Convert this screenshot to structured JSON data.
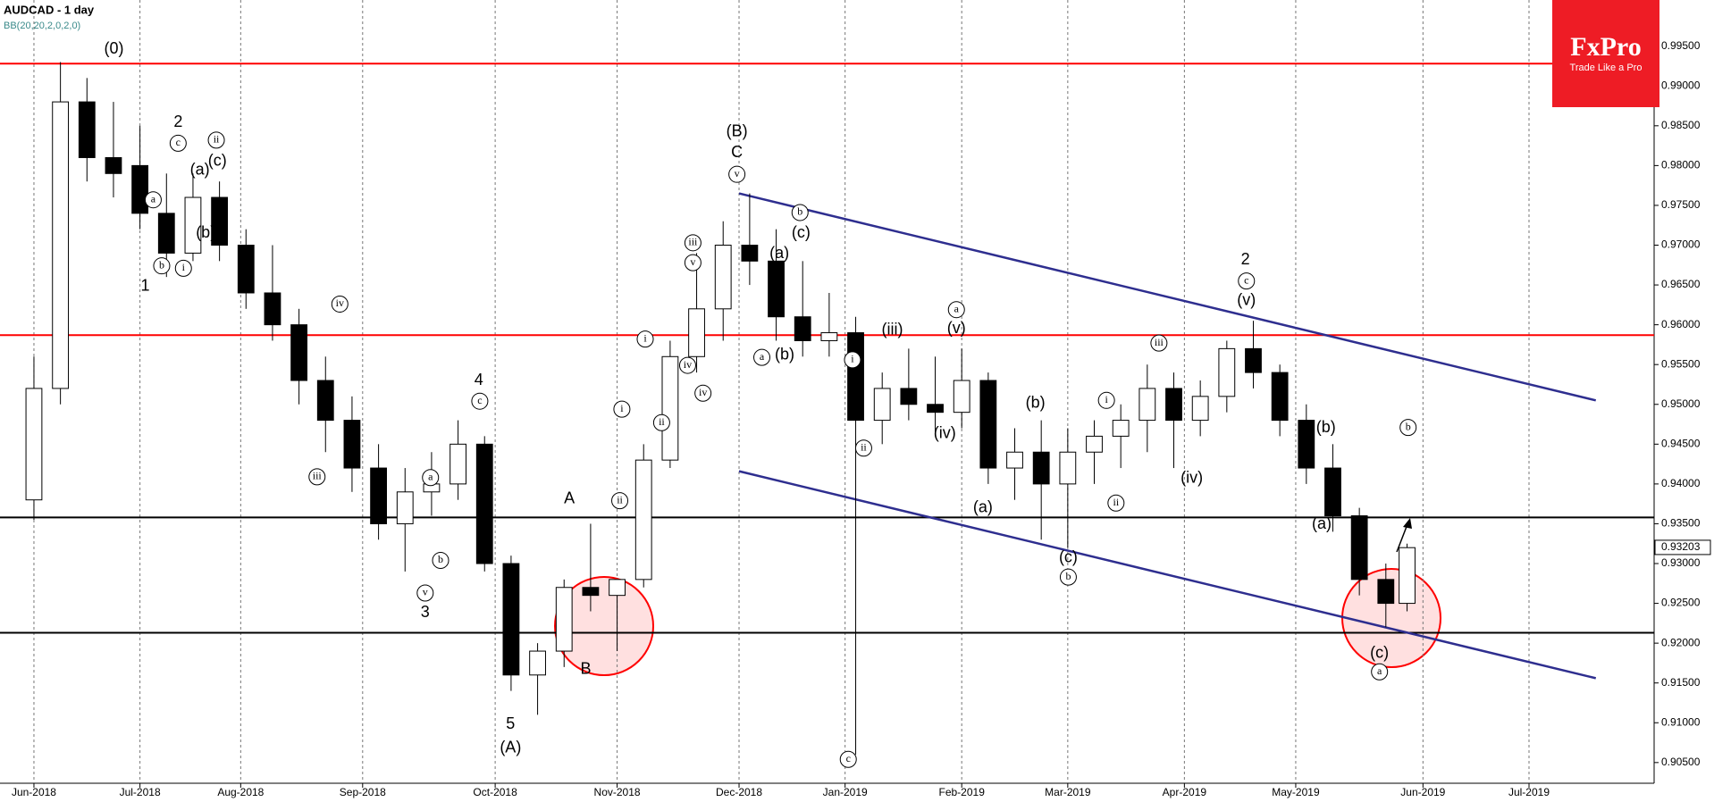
{
  "chart_data": {
    "type": "candlestick",
    "title": "AUDCAD - 1 day",
    "subtitle": "BB(20,20,2,0,2,0)",
    "brand": {
      "name": "FxPro",
      "tagline": "Trade Like a Pro"
    },
    "x": [
      0,
      5,
      10,
      15,
      20,
      25,
      30,
      35,
      40,
      45,
      50,
      55,
      60,
      65,
      70,
      75,
      80,
      85,
      90,
      95,
      100,
      105,
      110,
      115,
      120,
      125,
      130,
      135,
      140,
      145,
      150,
      155,
      160,
      165,
      170,
      175,
      180,
      185,
      190,
      195,
      200,
      205,
      210,
      215,
      220,
      225,
      230,
      235,
      240,
      245,
      250,
      255,
      259
    ],
    "open": [
      0.938,
      0.952,
      0.988,
      0.981,
      0.98,
      0.974,
      0.969,
      0.976,
      0.97,
      0.964,
      0.96,
      0.953,
      0.948,
      0.942,
      0.935,
      0.939,
      0.94,
      0.945,
      0.93,
      0.916,
      0.919,
      0.927,
      0.926,
      0.928,
      0.943,
      0.956,
      0.962,
      0.97,
      0.968,
      0.961,
      0.958,
      0.959,
      0.948,
      0.952,
      0.95,
      0.949,
      0.953,
      0.942,
      0.944,
      0.94,
      0.944,
      0.946,
      0.948,
      0.952,
      0.948,
      0.951,
      0.957,
      0.954,
      0.948,
      0.942,
      0.936,
      0.928,
      0.925
    ],
    "high": [
      0.956,
      0.993,
      0.991,
      0.988,
      0.985,
      0.979,
      0.979,
      0.978,
      0.972,
      0.97,
      0.962,
      0.956,
      0.951,
      0.945,
      0.942,
      0.944,
      0.948,
      0.946,
      0.931,
      0.92,
      0.928,
      0.935,
      0.928,
      0.945,
      0.958,
      0.969,
      0.973,
      0.9765,
      0.972,
      0.968,
      0.964,
      0.961,
      0.954,
      0.957,
      0.956,
      0.957,
      0.954,
      0.947,
      0.948,
      0.947,
      0.948,
      0.95,
      0.955,
      0.954,
      0.953,
      0.958,
      0.9605,
      0.955,
      0.95,
      0.945,
      0.937,
      0.93,
      0.9325
    ],
    "low": [
      0.9355,
      0.95,
      0.978,
      0.976,
      0.972,
      0.966,
      0.968,
      0.968,
      0.962,
      0.958,
      0.95,
      0.944,
      0.939,
      0.933,
      0.929,
      0.936,
      0.938,
      0.929,
      0.914,
      0.911,
      0.917,
      0.924,
      0.919,
      0.927,
      0.942,
      0.954,
      0.958,
      0.965,
      0.958,
      0.956,
      0.956,
      0.906,
      0.945,
      0.948,
      0.946,
      0.947,
      0.94,
      0.938,
      0.933,
      0.932,
      0.94,
      0.942,
      0.944,
      0.942,
      0.946,
      0.949,
      0.952,
      0.946,
      0.94,
      0.934,
      0.926,
      0.922,
      0.924
    ],
    "close": [
      0.952,
      0.988,
      0.981,
      0.979,
      0.974,
      0.969,
      0.976,
      0.97,
      0.964,
      0.96,
      0.953,
      0.948,
      0.942,
      0.935,
      0.939,
      0.94,
      0.945,
      0.93,
      0.916,
      0.919,
      0.927,
      0.926,
      0.928,
      0.943,
      0.956,
      0.962,
      0.97,
      0.968,
      0.961,
      0.958,
      0.959,
      0.948,
      0.952,
      0.95,
      0.949,
      0.953,
      0.942,
      0.944,
      0.94,
      0.944,
      0.946,
      0.948,
      0.952,
      0.948,
      0.951,
      0.957,
      0.954,
      0.948,
      0.942,
      0.936,
      0.928,
      0.925,
      0.932
    ],
    "xlim": [
      -6.4,
      305.6
    ],
    "xticks": [
      {
        "value": 0,
        "label": "Jun-2018"
      },
      {
        "value": 20,
        "label": "Jul-2018"
      },
      {
        "value": 39,
        "label": "Aug-2018"
      },
      {
        "value": 62,
        "label": "Sep-2018"
      },
      {
        "value": 87,
        "label": "Oct-2018"
      },
      {
        "value": 110,
        "label": "Nov-2018"
      },
      {
        "value": 133,
        "label": "Dec-2018"
      },
      {
        "value": 153,
        "label": "Jan-2019"
      },
      {
        "value": 175,
        "label": "Feb-2019"
      },
      {
        "value": 195,
        "label": "Mar-2019"
      },
      {
        "value": 217,
        "label": "Apr-2019"
      },
      {
        "value": 238,
        "label": "May-2019"
      },
      {
        "value": 262,
        "label": "Jun-2019"
      },
      {
        "value": 282,
        "label": "Jul-2019"
      }
    ],
    "ylim": [
      0.9024,
      1.0008
    ],
    "yticks": [
      {
        "value": 0.905,
        "label": "0.90500"
      },
      {
        "value": 0.91,
        "label": "0.91000"
      },
      {
        "value": 0.915,
        "label": "0.91500"
      },
      {
        "value": 0.92,
        "label": "0.92000"
      },
      {
        "value": 0.925,
        "label": "0.92500"
      },
      {
        "value": 0.93,
        "label": "0.93000"
      },
      {
        "value": 0.935,
        "label": "0.93500"
      },
      {
        "value": 0.94,
        "label": "0.94000"
      },
      {
        "value": 0.945,
        "label": "0.94500"
      },
      {
        "value": 0.95,
        "label": "0.95000"
      },
      {
        "value": 0.955,
        "label": "0.95500"
      },
      {
        "value": 0.96,
        "label": "0.96000"
      },
      {
        "value": 0.965,
        "label": "0.96500"
      },
      {
        "value": 0.97,
        "label": "0.97000"
      },
      {
        "value": 0.975,
        "label": "0.97500"
      },
      {
        "value": 0.98,
        "label": "0.98000"
      },
      {
        "value": 0.985,
        "label": "0.98500"
      },
      {
        "value": 0.99,
        "label": "0.99000"
      },
      {
        "value": 0.995,
        "label": "0.99500"
      }
    ],
    "last_price": {
      "value": 0.93203,
      "label": "0.93203"
    },
    "grid": "x",
    "levels": [
      {
        "value": 0.9928,
        "color": "#ff0000"
      },
      {
        "value": 0.9587,
        "color": "#ff0000"
      },
      {
        "value": 0.9358,
        "color": "#000000"
      },
      {
        "value": 0.9213,
        "color": "#000000"
      }
    ],
    "trendlines": [
      {
        "x": [
          133,
          294.6
        ],
        "y": [
          0.9765,
          0.9505
        ],
        "color": "#2e2e8f"
      },
      {
        "x": [
          133,
          294.6
        ],
        "y": [
          0.9416,
          0.9156
        ],
        "color": "#2e2e8f"
      }
    ],
    "annotations": [
      {
        "text": "(0)",
        "x": 15.1,
        "y": 0.9946,
        "circled": false
      },
      {
        "text": "2",
        "x": 27.2,
        "y": 0.9854,
        "circled": false
      },
      {
        "text": "1",
        "x": 21,
        "y": 0.9648,
        "circled": false
      },
      {
        "text": "3",
        "x": 73.8,
        "y": 0.9238,
        "circled": false
      },
      {
        "text": "4",
        "x": 83.9,
        "y": 0.953,
        "circled": false
      },
      {
        "text": "5",
        "x": 89.9,
        "y": 0.9098,
        "circled": false
      },
      {
        "text": "(A)",
        "x": 89.9,
        "y": 0.9068,
        "circled": false
      },
      {
        "text": "A",
        "x": 101,
        "y": 0.9381,
        "circled": false
      },
      {
        "text": "B",
        "x": 104.1,
        "y": 0.9167,
        "circled": false
      },
      {
        "text": "(B)",
        "x": 132.6,
        "y": 0.9842,
        "circled": false
      },
      {
        "text": "C",
        "x": 132.6,
        "y": 0.9816,
        "circled": false
      },
      {
        "text": "2",
        "x": 228.5,
        "y": 0.9681,
        "circled": false
      },
      {
        "text": "c",
        "x": 27.2,
        "y": 0.9828,
        "circled": true
      },
      {
        "text": "ii",
        "x": 34.4,
        "y": 0.9832,
        "circled": true
      },
      {
        "text": "(c)",
        "x": 34.6,
        "y": 0.9805,
        "circled": false
      },
      {
        "text": "(a)",
        "x": 31.3,
        "y": 0.9794,
        "circled": false
      },
      {
        "text": "(b)",
        "x": 32.4,
        "y": 0.9715,
        "circled": false
      },
      {
        "text": "a",
        "x": 22.5,
        "y": 0.9757,
        "circled": true
      },
      {
        "text": "b",
        "x": 24.1,
        "y": 0.9674,
        "circled": true
      },
      {
        "text": "i",
        "x": 28.2,
        "y": 0.9671,
        "circled": true
      },
      {
        "text": "iv",
        "x": 57.7,
        "y": 0.9626,
        "circled": true
      },
      {
        "text": "iii",
        "x": 53.4,
        "y": 0.9409,
        "circled": true
      },
      {
        "text": "c",
        "x": 84.1,
        "y": 0.9504,
        "circled": true
      },
      {
        "text": "a",
        "x": 74.8,
        "y": 0.9408,
        "circled": true
      },
      {
        "text": "v",
        "x": 73.8,
        "y": 0.9263,
        "circled": true
      },
      {
        "text": "b",
        "x": 76.7,
        "y": 0.9304,
        "circled": true
      },
      {
        "text": "i",
        "x": 110.9,
        "y": 0.9494,
        "circled": true
      },
      {
        "text": "ii",
        "x": 110.5,
        "y": 0.9379,
        "circled": true
      },
      {
        "text": "i",
        "x": 115.3,
        "y": 0.9582,
        "circled": true
      },
      {
        "text": "ii",
        "x": 118.4,
        "y": 0.9477,
        "circled": true
      },
      {
        "text": "iii",
        "x": 124.3,
        "y": 0.9703,
        "circled": true
      },
      {
        "text": "v",
        "x": 124.3,
        "y": 0.9678,
        "circled": true
      },
      {
        "text": "iv",
        "x": 126.2,
        "y": 0.9514,
        "circled": true
      },
      {
        "text": "iv",
        "x": 123.3,
        "y": 0.9549,
        "circled": true
      },
      {
        "text": "v",
        "x": 132.6,
        "y": 0.9789,
        "circled": true
      },
      {
        "text": "b",
        "x": 144.5,
        "y": 0.9741,
        "circled": true
      },
      {
        "text": "(c)",
        "x": 144.7,
        "y": 0.9715,
        "circled": false
      },
      {
        "text": "(a)",
        "x": 140.6,
        "y": 0.9689,
        "circled": false
      },
      {
        "text": "a",
        "x": 137.3,
        "y": 0.9559,
        "circled": true
      },
      {
        "text": "(b)",
        "x": 141.6,
        "y": 0.9562,
        "circled": false
      },
      {
        "text": "i",
        "x": 154.4,
        "y": 0.9556,
        "circled": true
      },
      {
        "text": "ii",
        "x": 156.5,
        "y": 0.9445,
        "circled": true
      },
      {
        "text": "c",
        "x": 153.6,
        "y": 0.9054,
        "circled": true
      },
      {
        "text": "a",
        "x": 174,
        "y": 0.9619,
        "circled": true
      },
      {
        "text": "(v)",
        "x": 174,
        "y": 0.9595,
        "circled": false
      },
      {
        "text": "(iii)",
        "x": 161.9,
        "y": 0.9593,
        "circled": false
      },
      {
        "text": "(iv)",
        "x": 171.8,
        "y": 0.9463,
        "circled": false
      },
      {
        "text": "(a)",
        "x": 179,
        "y": 0.937,
        "circled": false
      },
      {
        "text": "(b)",
        "x": 188.9,
        "y": 0.9501,
        "circled": false
      },
      {
        "text": "(c)",
        "x": 195.1,
        "y": 0.9307,
        "circled": false
      },
      {
        "text": "b",
        "x": 195.1,
        "y": 0.9283,
        "circled": true
      },
      {
        "text": "ii",
        "x": 204.1,
        "y": 0.9376,
        "circled": true
      },
      {
        "text": "i",
        "x": 202.3,
        "y": 0.9505,
        "circled": true
      },
      {
        "text": "iii",
        "x": 212.2,
        "y": 0.9577,
        "circled": true
      },
      {
        "text": "(iv)",
        "x": 218.4,
        "y": 0.9407,
        "circled": false
      },
      {
        "text": "c",
        "x": 228.7,
        "y": 0.9655,
        "circled": true
      },
      {
        "text": "(v)",
        "x": 228.7,
        "y": 0.963,
        "circled": false
      },
      {
        "text": "(a)",
        "x": 242.9,
        "y": 0.9349,
        "circled": false
      },
      {
        "text": "(b)",
        "x": 243.7,
        "y": 0.947,
        "circled": false
      },
      {
        "text": "(c)",
        "x": 253.8,
        "y": 0.9187,
        "circled": false
      },
      {
        "text": "a",
        "x": 253.8,
        "y": 0.9164,
        "circled": true
      },
      {
        "text": "b",
        "x": 259.2,
        "y": 0.9471,
        "circled": true
      }
    ]
  }
}
